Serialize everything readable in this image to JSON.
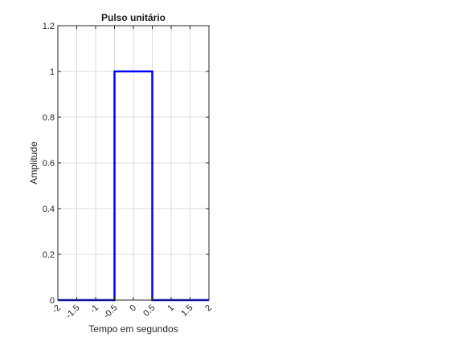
{
  "chart_data": {
    "type": "line",
    "title": "Pulso unitário",
    "xlabel": "Tempo em segundos",
    "ylabel": "Amplitude",
    "xlim": [
      -2,
      2
    ],
    "ylim": [
      0,
      1.2
    ],
    "xticks": [
      -2,
      -1.5,
      -1,
      -0.5,
      0,
      0.5,
      1,
      1.5,
      2
    ],
    "xtick_labels": [
      "-2",
      "-1.5",
      "-1",
      "-0.5",
      "0",
      "0.5",
      "1",
      "1.5",
      "2"
    ],
    "yticks": [
      0,
      0.2,
      0.4,
      0.6,
      0.8,
      1,
      1.2
    ],
    "ytick_labels": [
      "0",
      "0.2",
      "0.4",
      "0.6",
      "0.8",
      "1",
      "1.2"
    ],
    "grid": true,
    "series": [
      {
        "color": "#0000ff",
        "x": [
          -2,
          -0.5,
          -0.5,
          0.5,
          0.5,
          2
        ],
        "y": [
          0,
          0,
          1,
          1,
          0,
          0
        ]
      }
    ]
  }
}
